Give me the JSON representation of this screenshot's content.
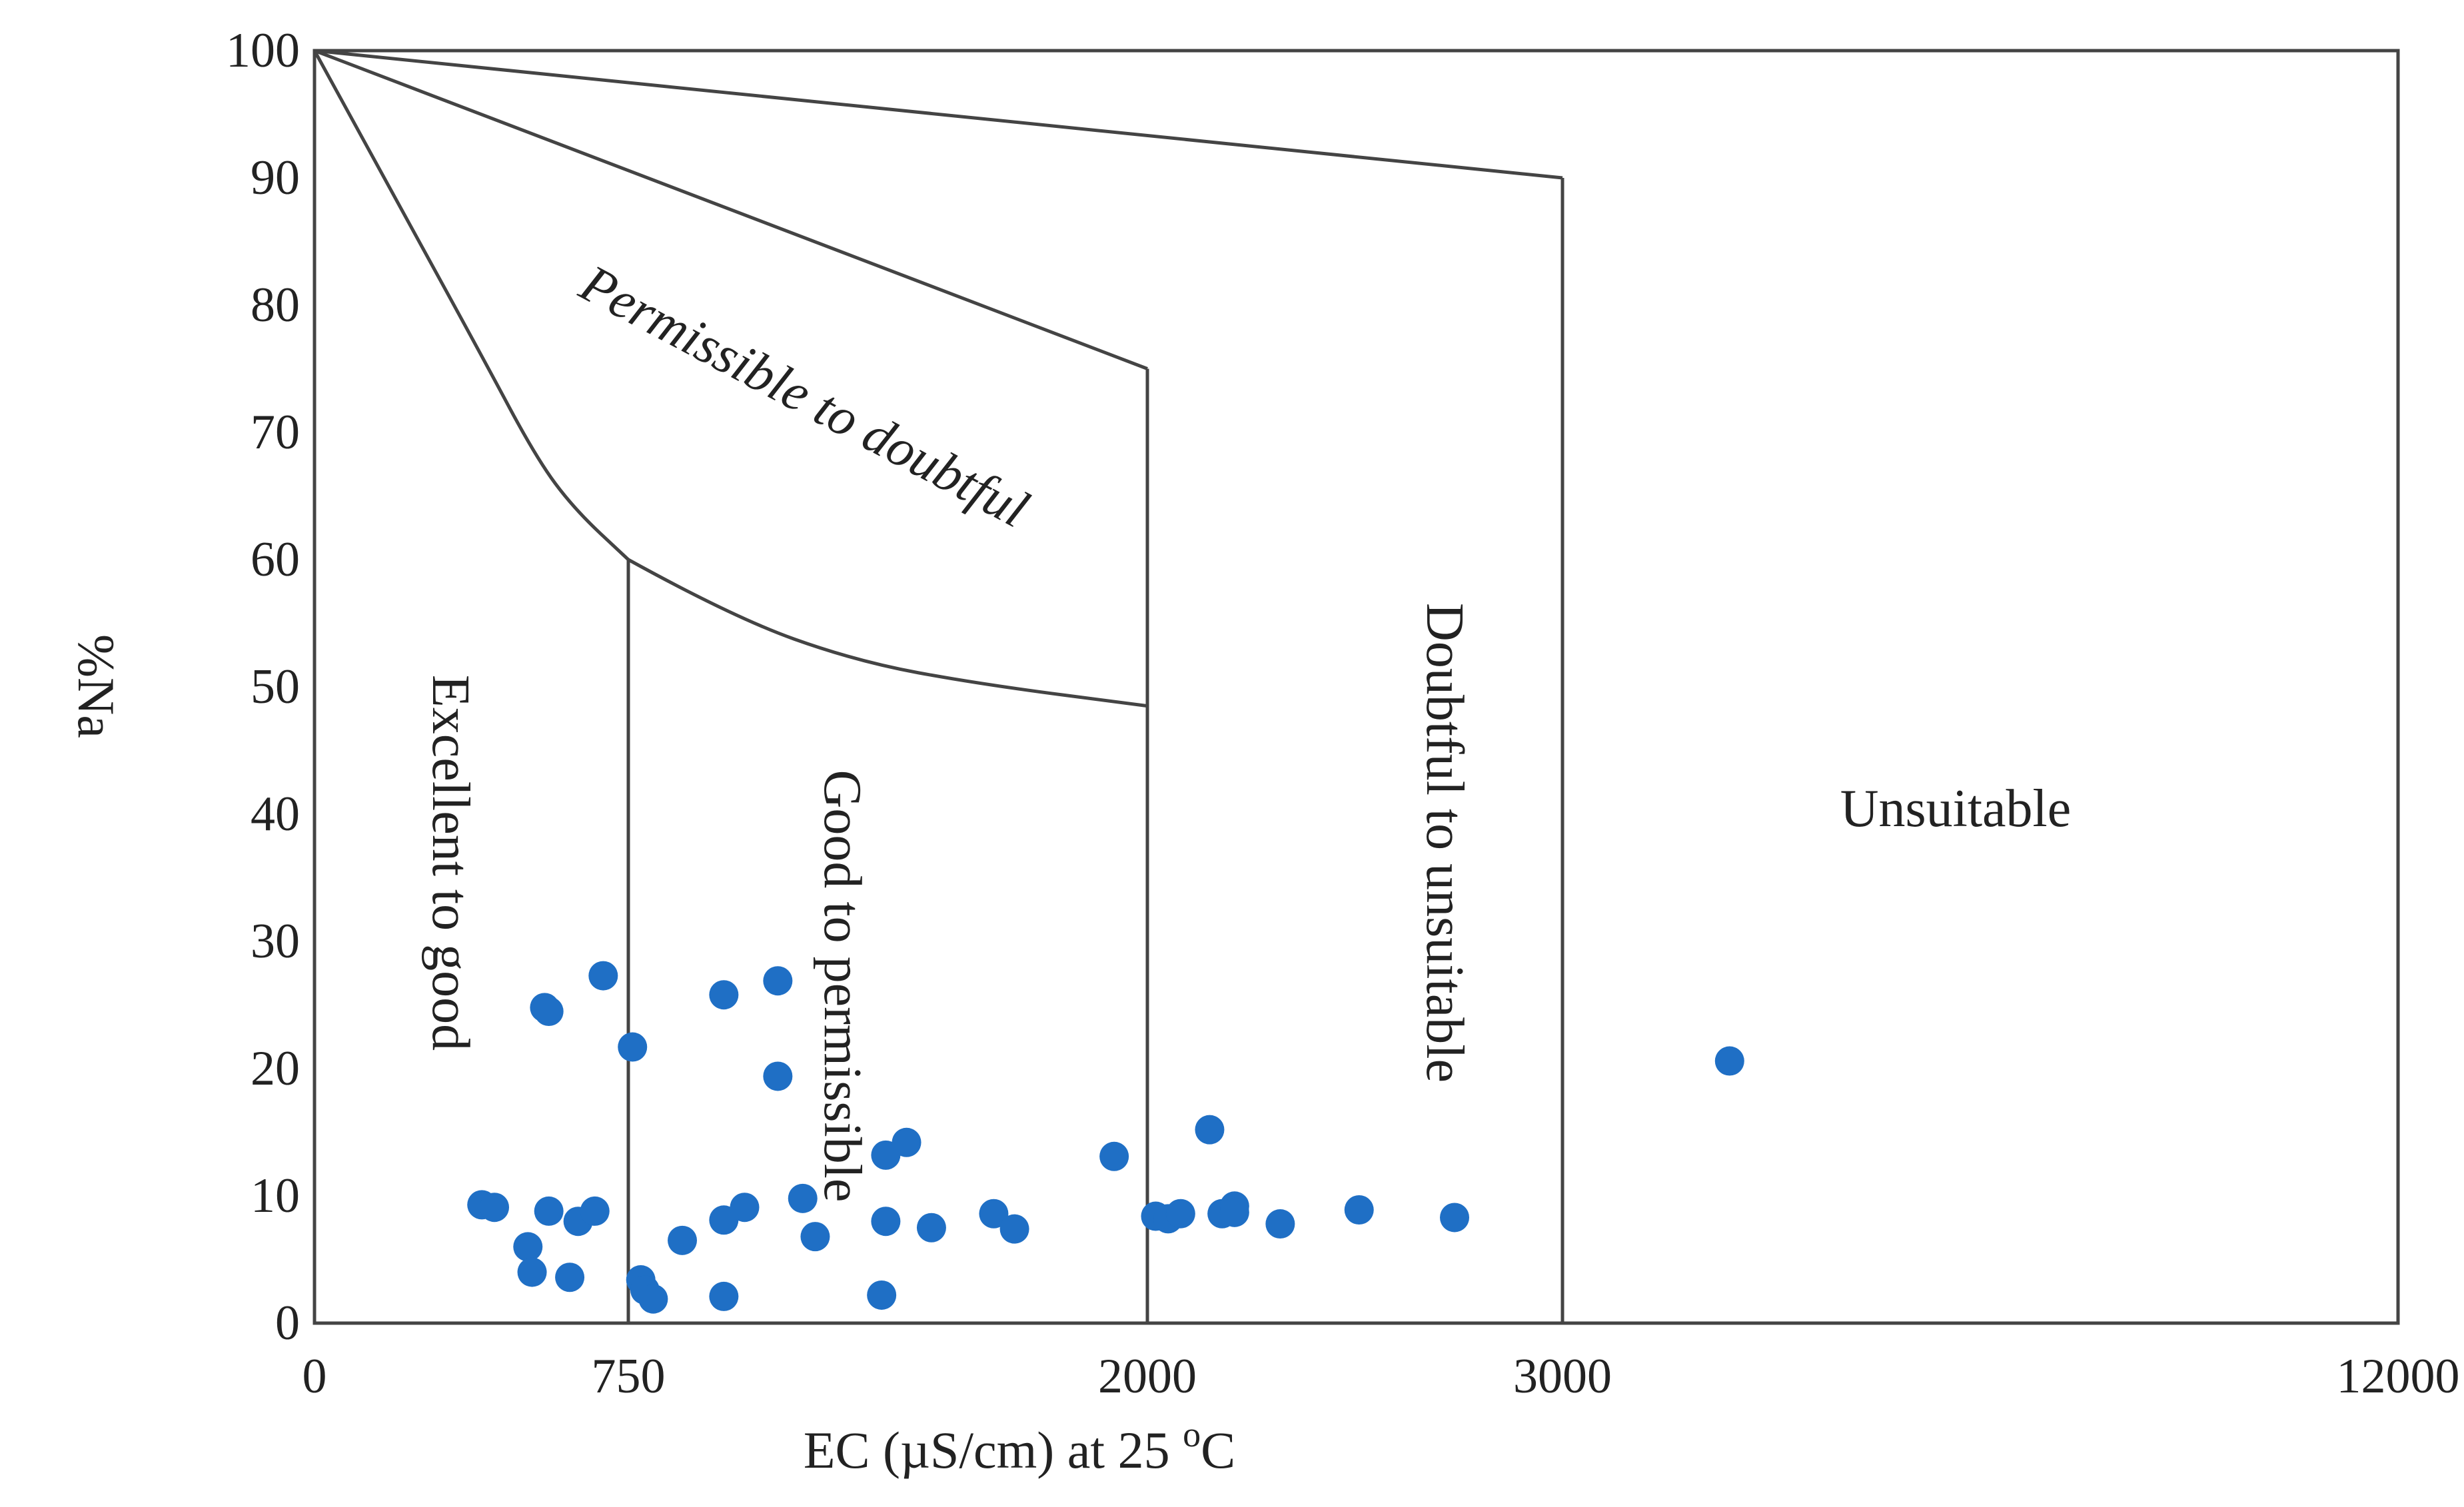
{
  "chart_data": {
    "type": "scatter",
    "title": "",
    "xlabel": "EC (µS/cm) at 25 °C",
    "xlabel_parts": {
      "prefix": "EC (µS/cm) at 25 ",
      "degree": "o",
      "suffix": "C"
    },
    "ylabel": "%Na",
    "x_ticks": [
      {
        "label": "0",
        "value": 0
      },
      {
        "label": "750",
        "value": 750
      },
      {
        "label": "2000",
        "value": 2000
      },
      {
        "label": "3000",
        "value": 3000
      },
      {
        "label": "12000",
        "value": 12000
      }
    ],
    "x_scale_note": "piecewise: equal-width class segments",
    "y_ticks": [
      0,
      10,
      20,
      30,
      40,
      50,
      60,
      70,
      80,
      90,
      100
    ],
    "ylim": [
      0,
      100
    ],
    "grid": false,
    "point_color": "#1f6fc5",
    "line_color": "#444444",
    "regions": [
      {
        "label": "Excellent to good"
      },
      {
        "label": "Good to permissible"
      },
      {
        "label": "Permissible to doubtful"
      },
      {
        "label": "Doubtful to unsuitable"
      },
      {
        "label": "Unsuitable"
      }
    ],
    "boundaries": {
      "excellent_curve": [
        [
          0,
          100
        ],
        [
          200,
          88
        ],
        [
          400,
          76
        ],
        [
          530,
          68
        ],
        [
          620,
          64
        ],
        [
          750,
          60
        ]
      ],
      "good_permissible_curve": [
        [
          750,
          60
        ],
        [
          1000,
          55.5
        ],
        [
          1300,
          52
        ],
        [
          1600,
          50.2
        ],
        [
          2000,
          48.5
        ]
      ],
      "permissible_doubtful_line": [
        [
          0,
          100
        ],
        [
          2000,
          75
        ]
      ],
      "doubtful_unsuitable_line": [
        [
          0,
          100
        ],
        [
          3000,
          90
        ]
      ],
      "vertical_750": [
        [
          750,
          0
        ],
        [
          750,
          60
        ]
      ],
      "vertical_2000": [
        [
          2000,
          0
        ],
        [
          2000,
          75
        ]
      ],
      "vertical_3000": [
        [
          3000,
          0
        ],
        [
          3000,
          90
        ]
      ]
    },
    "series": [
      {
        "name": "samples",
        "points": [
          [
            400,
            9.3
          ],
          [
            430,
            9.1
          ],
          [
            510,
            6.0
          ],
          [
            520,
            4.0
          ],
          [
            550,
            24.8
          ],
          [
            560,
            8.8
          ],
          [
            560,
            24.5
          ],
          [
            610,
            3.6
          ],
          [
            630,
            8.0
          ],
          [
            670,
            8.8
          ],
          [
            690,
            27.3
          ],
          [
            760,
            21.7
          ],
          [
            780,
            3.4
          ],
          [
            790,
            2.6
          ],
          [
            810,
            1.9
          ],
          [
            880,
            6.5
          ],
          [
            980,
            8.1
          ],
          [
            980,
            25.8
          ],
          [
            980,
            2.1
          ],
          [
            1030,
            9.1
          ],
          [
            1110,
            26.9
          ],
          [
            1110,
            19.4
          ],
          [
            1170,
            9.8
          ],
          [
            1200,
            6.8
          ],
          [
            1360,
            2.2
          ],
          [
            1370,
            8.0
          ],
          [
            1370,
            13.2
          ],
          [
            1420,
            14.2
          ],
          [
            1480,
            7.5
          ],
          [
            1630,
            8.6
          ],
          [
            1680,
            7.4
          ],
          [
            1920,
            13.1
          ],
          [
            2020,
            8.4
          ],
          [
            2050,
            8.2
          ],
          [
            2080,
            8.6
          ],
          [
            2150,
            15.2
          ],
          [
            2180,
            8.6
          ],
          [
            2210,
            9.2
          ],
          [
            2210,
            8.7
          ],
          [
            2320,
            7.8
          ],
          [
            2510,
            8.9
          ],
          [
            2740,
            8.3
          ],
          [
            4800,
            20.6
          ]
        ]
      }
    ]
  }
}
